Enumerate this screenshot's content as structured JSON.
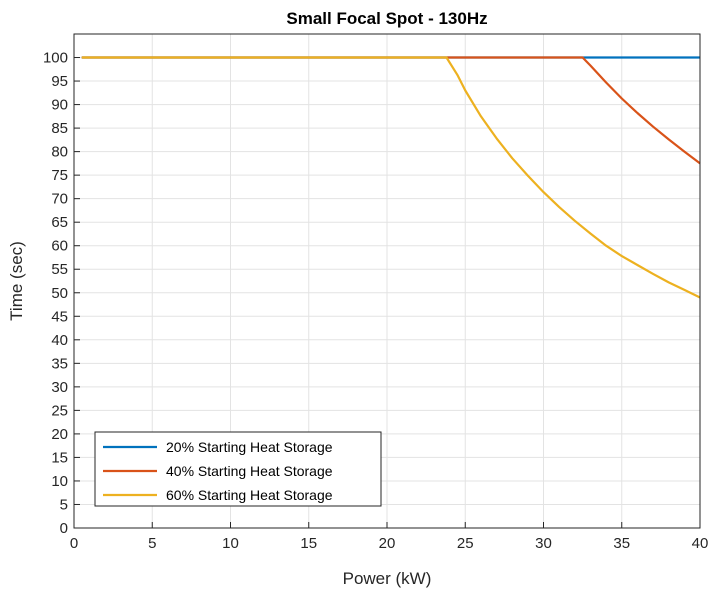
{
  "chart_data": {
    "type": "line",
    "title": "Small Focal Spot - 130Hz",
    "xlabel": "Power (kW)",
    "ylabel": "Time (sec)",
    "xlim": [
      0,
      40
    ],
    "ylim": [
      0,
      105
    ],
    "xticks": [
      0,
      5,
      10,
      15,
      20,
      25,
      30,
      35,
      40
    ],
    "yticks": [
      0,
      5,
      10,
      15,
      20,
      25,
      30,
      35,
      40,
      45,
      50,
      55,
      60,
      65,
      70,
      75,
      80,
      85,
      90,
      95,
      100
    ],
    "grid": true,
    "legend_position": "bottom-left",
    "series": [
      {
        "name": "20% Starting Heat Storage",
        "color": "#0072BD",
        "x": [
          0.5,
          5,
          10,
          15,
          20,
          25,
          30,
          35,
          40
        ],
        "y": [
          100,
          100,
          100,
          100,
          100,
          100,
          100,
          100,
          100
        ]
      },
      {
        "name": "40% Starting Heat Storage",
        "color": "#D95319",
        "x": [
          0.5,
          5,
          10,
          15,
          20,
          25,
          30,
          32.5,
          33,
          34,
          35,
          36,
          37,
          38,
          39,
          40
        ],
        "y": [
          100,
          100,
          100,
          100,
          100,
          100,
          100,
          100,
          98.3,
          94.7,
          91.3,
          88.2,
          85.3,
          82.6,
          80.0,
          77.5
        ]
      },
      {
        "name": "60% Starting Heat Storage",
        "color": "#EDB120",
        "x": [
          0.5,
          5,
          10,
          15,
          20,
          23.8,
          24.5,
          25,
          26,
          27,
          28,
          29,
          30,
          31,
          32,
          33,
          34,
          35,
          36,
          37,
          38,
          39,
          40
        ],
        "y": [
          100,
          100,
          100,
          100,
          100,
          100,
          96.3,
          93.0,
          87.5,
          82.8,
          78.6,
          74.9,
          71.4,
          68.2,
          65.3,
          62.6,
          60.0,
          57.8,
          55.9,
          54.0,
          52.2,
          50.6,
          49.0
        ]
      }
    ]
  }
}
